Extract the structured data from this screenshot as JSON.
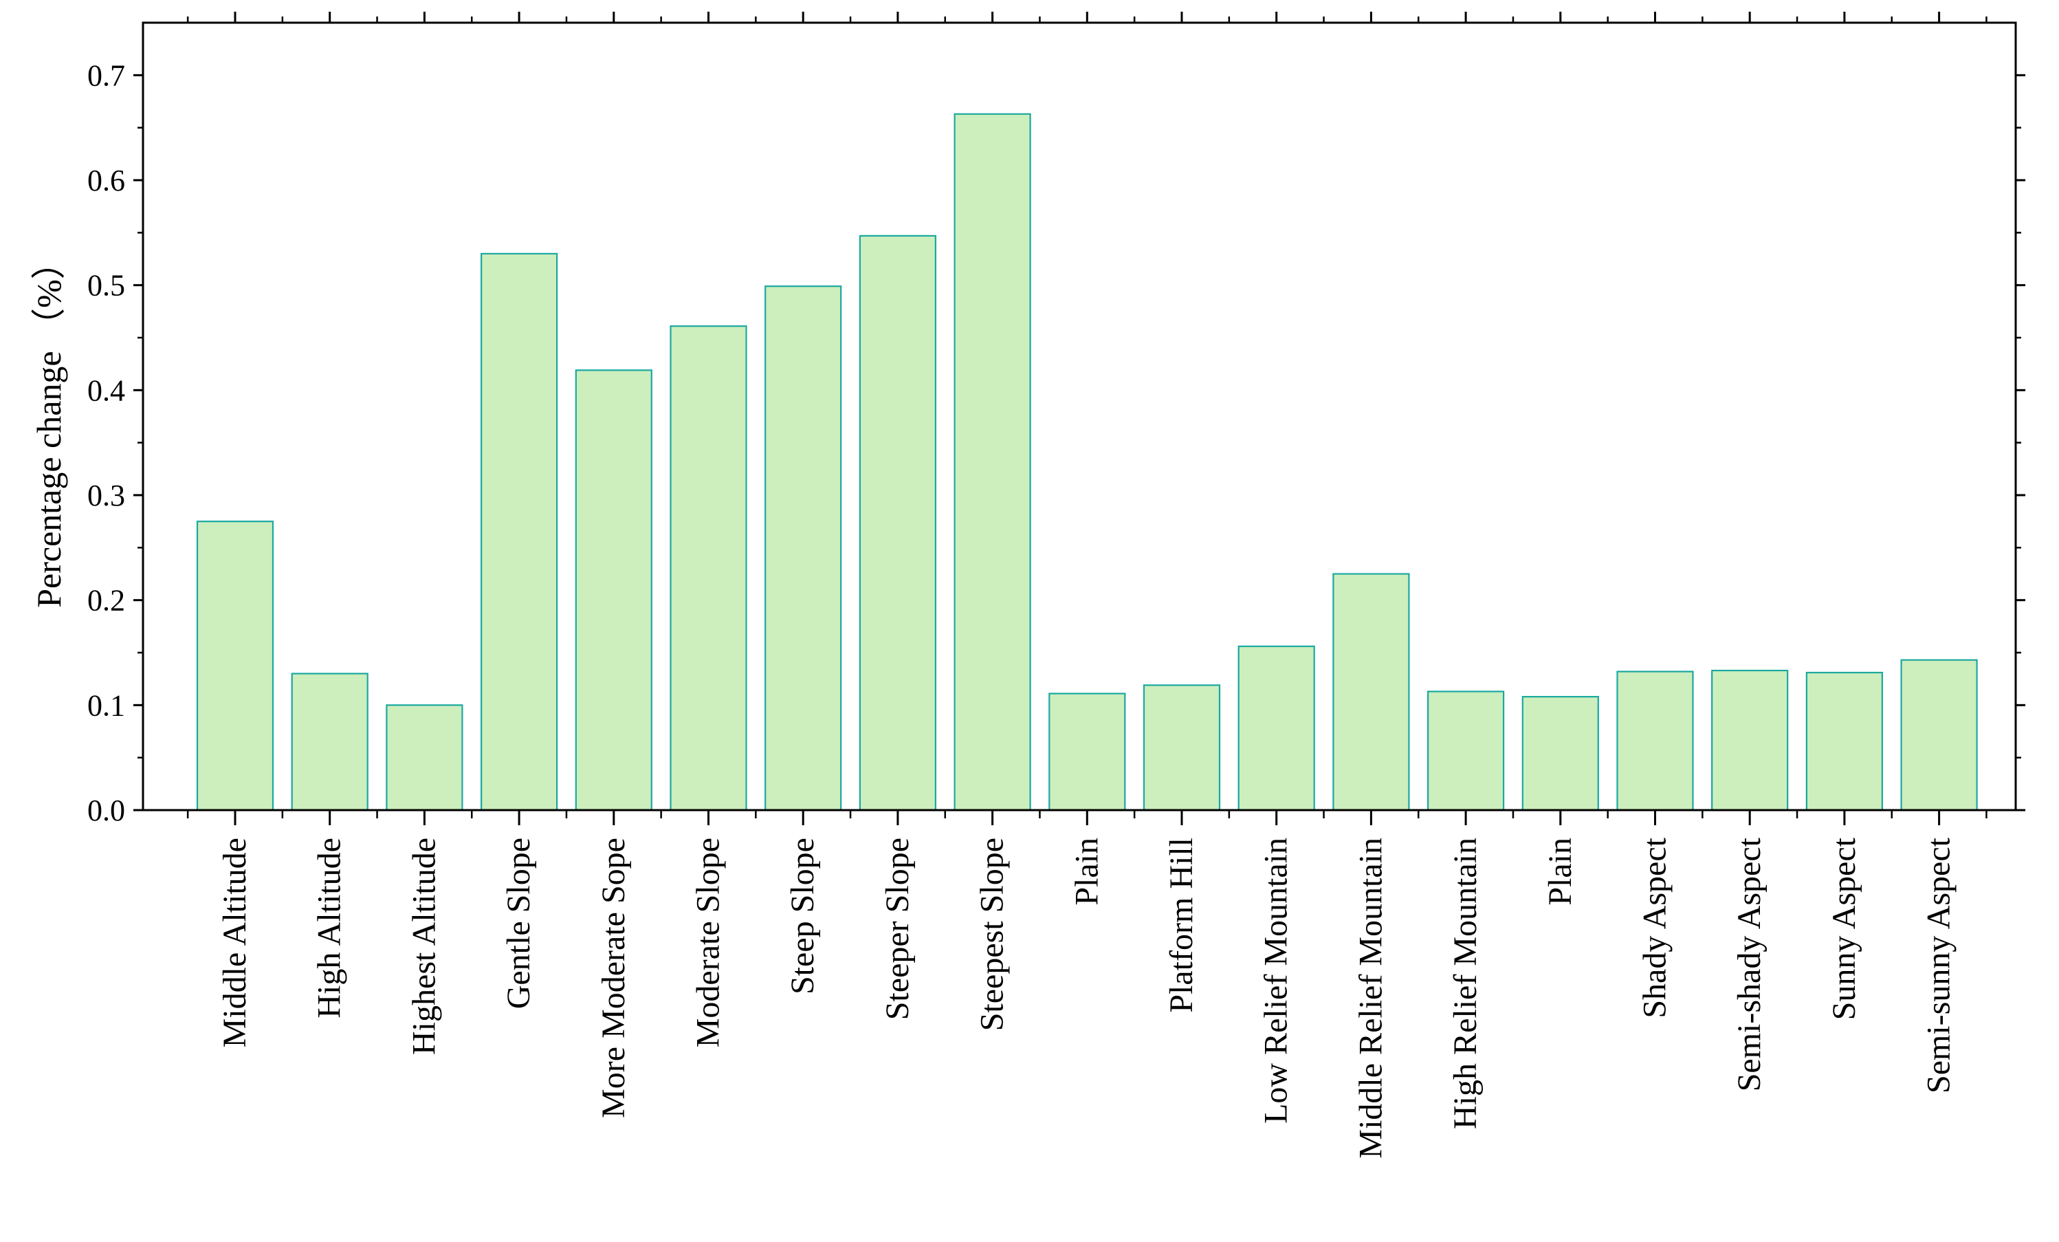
{
  "chart_data": {
    "type": "bar",
    "title": "",
    "xlabel": "",
    "ylabel": "Percentage change （%）",
    "ylim": [
      0,
      0.75
    ],
    "yticks": [
      "0.0",
      "0.1",
      "0.2",
      "0.3",
      "0.4",
      "0.5",
      "0.6",
      "0.7"
    ],
    "grid": false,
    "legend": "none",
    "categories": [
      "Middle Altitude",
      "High Altitude",
      "Highest Altitude",
      "Gentle Slope",
      "More Moderate Sope",
      "Moderate Slope",
      "Steep Slope",
      "Steeper Slope",
      "Steepest Slope",
      "Plain",
      "Platform Hill",
      "Low Relief Mountain",
      "Middle Relief Mountain",
      "High Relief Mountain",
      "Plain",
      "Shady Aspect",
      "Semi-shady Aspect",
      "Sunny Aspect",
      "Semi-sunny Aspect"
    ],
    "values": [
      0.275,
      0.13,
      0.1,
      0.53,
      0.419,
      0.461,
      0.499,
      0.547,
      0.663,
      0.111,
      0.119,
      0.156,
      0.225,
      0.113,
      0.108,
      0.132,
      0.133,
      0.131,
      0.143
    ],
    "colors": {
      "bar_fill": "#cdeebd",
      "bar_stroke": "#1aa9a0",
      "axis": "#000000"
    }
  }
}
